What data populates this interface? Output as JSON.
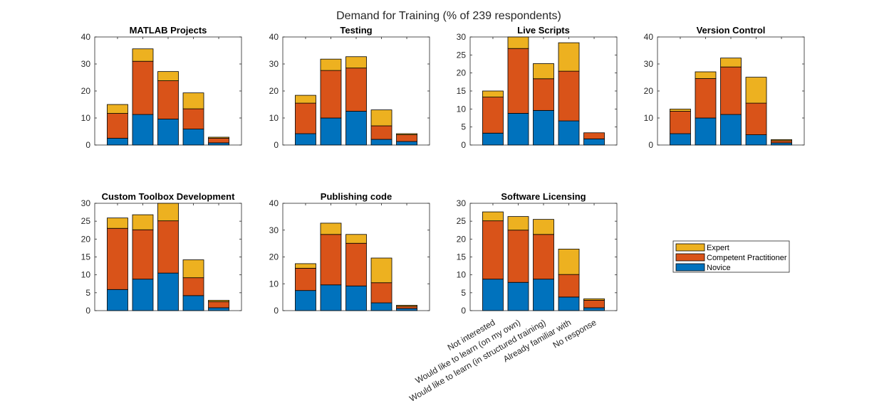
{
  "figure_title": "Demand for Training (% of 239 respondents)",
  "colors": {
    "Novice": "#0072BD",
    "Competent Practitioner": "#D95319",
    "Expert": "#EDB120"
  },
  "chart_data": [
    {
      "type": "bar",
      "stacked": true,
      "title": "MATLAB Projects",
      "categories": [
        "Not interested",
        "Would like to learn (on my own)",
        "Would like to learn (in structured training)",
        "Already familiar with",
        "No response"
      ],
      "ylim": [
        0,
        40
      ],
      "yticks": [
        0,
        10,
        20,
        30,
        40
      ],
      "series": [
        {
          "name": "Novice",
          "values": [
            2.5,
            11.3,
            9.6,
            5.9,
            0.8
          ]
        },
        {
          "name": "Competent Practitioner",
          "values": [
            9.2,
            19.7,
            14.2,
            7.5,
            1.7
          ]
        },
        {
          "name": "Expert",
          "values": [
            3.3,
            4.6,
            3.4,
            5.9,
            0.4
          ]
        }
      ]
    },
    {
      "type": "bar",
      "stacked": true,
      "title": "Testing",
      "categories": [
        "Not interested",
        "Would like to learn (on my own)",
        "Would like to learn (in structured training)",
        "Already familiar with",
        "No response"
      ],
      "ylim": [
        0,
        40
      ],
      "yticks": [
        0,
        10,
        20,
        30,
        40
      ],
      "series": [
        {
          "name": "Novice",
          "values": [
            4.2,
            10.0,
            12.5,
            2.1,
            1.3
          ]
        },
        {
          "name": "Competent Practitioner",
          "values": [
            11.3,
            17.6,
            16.0,
            5.0,
            2.5
          ]
        },
        {
          "name": "Expert",
          "values": [
            2.9,
            4.2,
            4.2,
            5.9,
            0.4
          ]
        }
      ]
    },
    {
      "type": "bar",
      "stacked": true,
      "title": "Live Scripts",
      "categories": [
        "Not interested",
        "Would like to learn (on my own)",
        "Would like to learn (in structured training)",
        "Already familiar with",
        "No response"
      ],
      "ylim": [
        0,
        30
      ],
      "yticks": [
        0,
        5,
        10,
        15,
        20,
        25,
        30
      ],
      "series": [
        {
          "name": "Novice",
          "values": [
            3.3,
            8.8,
            9.6,
            6.7,
            1.7
          ]
        },
        {
          "name": "Competent Practitioner",
          "values": [
            10.0,
            18.0,
            8.8,
            13.8,
            1.7
          ]
        },
        {
          "name": "Expert",
          "values": [
            1.7,
            4.2,
            4.2,
            7.9,
            0
          ]
        }
      ]
    },
    {
      "type": "bar",
      "stacked": true,
      "title": "Version Control",
      "categories": [
        "Not interested",
        "Would like to learn (on my own)",
        "Would like to learn (in structured training)",
        "Already familiar with",
        "No response"
      ],
      "ylim": [
        0,
        40
      ],
      "yticks": [
        0,
        10,
        20,
        30,
        40
      ],
      "series": [
        {
          "name": "Novice",
          "values": [
            4.2,
            10.0,
            11.3,
            3.8,
            0.8
          ]
        },
        {
          "name": "Competent Practitioner",
          "values": [
            8.3,
            14.6,
            17.6,
            11.7,
            0.8
          ]
        },
        {
          "name": "Expert",
          "values": [
            0.8,
            2.5,
            3.3,
            9.6,
            0.4
          ]
        }
      ]
    },
    {
      "type": "bar",
      "stacked": true,
      "title": "Custom Toolbox Development",
      "categories": [
        "Not interested",
        "Would like to learn (on my own)",
        "Would like to learn (in structured training)",
        "Already familiar with",
        "No response"
      ],
      "ylim": [
        0,
        30
      ],
      "yticks": [
        0,
        5,
        10,
        15,
        20,
        25,
        30
      ],
      "series": [
        {
          "name": "Novice",
          "values": [
            5.9,
            8.8,
            10.5,
            4.2,
            0.8
          ]
        },
        {
          "name": "Competent Practitioner",
          "values": [
            17.1,
            13.8,
            14.6,
            5.0,
            1.7
          ]
        },
        {
          "name": "Expert",
          "values": [
            2.9,
            4.2,
            5.4,
            5.0,
            0.4
          ]
        }
      ]
    },
    {
      "type": "bar",
      "stacked": true,
      "title": "Publishing code",
      "categories": [
        "Not interested",
        "Would like to learn (on my own)",
        "Would like to learn (in structured training)",
        "Already familiar with",
        "No response"
      ],
      "ylim": [
        0,
        40
      ],
      "yticks": [
        0,
        10,
        20,
        30,
        40
      ],
      "series": [
        {
          "name": "Novice",
          "values": [
            7.5,
            9.6,
            9.2,
            2.9,
            0.8
          ]
        },
        {
          "name": "Competent Practitioner",
          "values": [
            8.3,
            18.8,
            15.9,
            7.5,
            0.8
          ]
        },
        {
          "name": "Expert",
          "values": [
            1.7,
            4.2,
            3.3,
            9.2,
            0.4
          ]
        }
      ]
    },
    {
      "type": "bar",
      "stacked": true,
      "title": "Software Licensing",
      "categories": [
        "Not interested",
        "Would like to learn (on my own)",
        "Would like to learn (in structured training)",
        "Already familiar with",
        "No response"
      ],
      "ylim": [
        0,
        30
      ],
      "yticks": [
        0,
        5,
        10,
        15,
        20,
        25,
        30
      ],
      "series": [
        {
          "name": "Novice",
          "values": [
            8.8,
            7.9,
            8.8,
            3.8,
            0.8
          ]
        },
        {
          "name": "Competent Practitioner",
          "values": [
            16.3,
            14.6,
            12.5,
            6.3,
            2.1
          ]
        },
        {
          "name": "Expert",
          "values": [
            2.5,
            3.8,
            4.2,
            7.1,
            0.4
          ]
        }
      ]
    }
  ],
  "legend": {
    "entries": [
      "Expert",
      "Competent Practitioner",
      "Novice"
    ]
  }
}
